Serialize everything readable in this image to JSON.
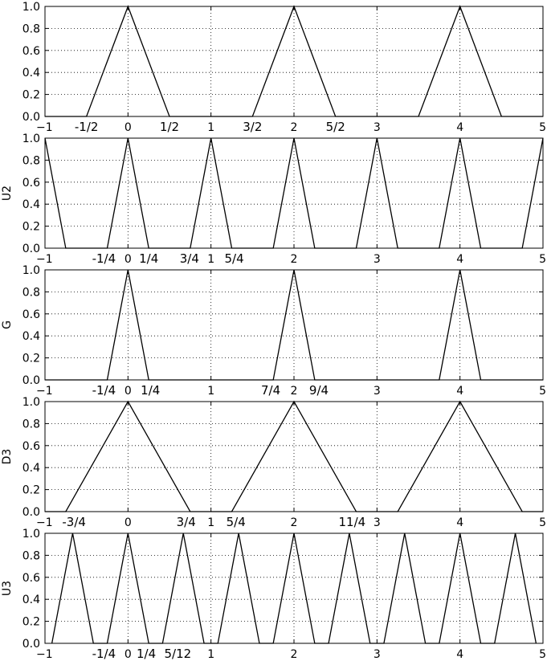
{
  "chart_data": [
    {
      "type": "line",
      "ylabel": "",
      "xlim": [
        -1,
        5
      ],
      "ylim": [
        0,
        1
      ],
      "xticks": [
        "−1",
        "0",
        "1",
        "2",
        "3",
        "4",
        "5"
      ],
      "yticks": [
        "0.0",
        "0.2",
        "0.4",
        "0.6",
        "0.8",
        "1.0"
      ],
      "grid": true,
      "annotations": [
        {
          "text": "-1/2",
          "x": -0.5
        },
        {
          "text": "1/2",
          "x": 0.5
        },
        {
          "text": "3/2",
          "x": 1.5
        },
        {
          "text": "5/2",
          "x": 2.5
        }
      ],
      "series": [
        {
          "x": [
            -1,
            -0.5,
            0,
            0.5,
            1.5,
            2,
            2.5,
            3.5,
            4,
            4.5,
            5
          ],
          "y": [
            0,
            0,
            1,
            0,
            0,
            1,
            0,
            0,
            1,
            0,
            0
          ]
        }
      ]
    },
    {
      "type": "line",
      "ylabel": "U2",
      "xlim": [
        -1,
        5
      ],
      "ylim": [
        0,
        1
      ],
      "xticks": [
        "−1",
        "0",
        "1",
        "2",
        "3",
        "4",
        "5"
      ],
      "yticks": [
        "0.0",
        "0.2",
        "0.4",
        "0.6",
        "0.8",
        "1.0"
      ],
      "grid": true,
      "annotations": [
        {
          "text": "-1/4",
          "x": -0.29
        },
        {
          "text": "1/4",
          "x": 0.25
        },
        {
          "text": "3/4",
          "x": 0.74
        },
        {
          "text": "5/4",
          "x": 1.28
        }
      ],
      "series": [
        {
          "x": [
            -1,
            -0.75,
            -0.25,
            0,
            0.25,
            0.75,
            1,
            1.25,
            1.75,
            2,
            2.25,
            2.75,
            3,
            3.25,
            3.75,
            4,
            4.25,
            4.75,
            5
          ],
          "y": [
            1,
            0,
            0,
            1,
            0,
            0,
            1,
            0,
            0,
            1,
            0,
            0,
            1,
            0,
            0,
            1,
            0,
            0,
            1
          ]
        }
      ]
    },
    {
      "type": "line",
      "ylabel": "G",
      "xlim": [
        -1,
        5
      ],
      "ylim": [
        0,
        1
      ],
      "xticks": [
        "−1",
        "0",
        "1",
        "2",
        "3",
        "4",
        "5"
      ],
      "yticks": [
        "0.0",
        "0.2",
        "0.4",
        "0.6",
        "0.8",
        "1.0"
      ],
      "grid": true,
      "annotations": [
        {
          "text": "-1/4",
          "x": -0.29
        },
        {
          "text": "1/4",
          "x": 0.27
        },
        {
          "text": "7/4",
          "x": 1.72
        },
        {
          "text": "9/4",
          "x": 2.3
        }
      ],
      "series": [
        {
          "x": [
            -1,
            -0.25,
            0,
            0.25,
            1.75,
            2,
            2.25,
            3.75,
            4,
            4.25,
            5
          ],
          "y": [
            0,
            0,
            1,
            0,
            0,
            1,
            0,
            0,
            1,
            0,
            0
          ]
        }
      ]
    },
    {
      "type": "line",
      "ylabel": "D3",
      "xlim": [
        -1,
        5
      ],
      "ylim": [
        0,
        1
      ],
      "xticks": [
        "−1",
        "0",
        "1",
        "2",
        "3",
        "4",
        "5"
      ],
      "yticks": [
        "0.0",
        "0.2",
        "0.4",
        "0.6",
        "0.8",
        "1.0"
      ],
      "grid": true,
      "annotations": [
        {
          "text": "-3/4",
          "x": -0.65
        },
        {
          "text": "3/4",
          "x": 0.7
        },
        {
          "text": "5/4",
          "x": 1.3
        },
        {
          "text": "11/4",
          "x": 2.7
        }
      ],
      "series": [
        {
          "x": [
            -1,
            -0.75,
            0,
            0.75,
            1.25,
            2,
            2.75,
            3.25,
            4,
            4.75,
            5
          ],
          "y": [
            0,
            0,
            1,
            0,
            0,
            1,
            0,
            0,
            1,
            0,
            0
          ]
        }
      ]
    },
    {
      "type": "line",
      "ylabel": "U3",
      "xlim": [
        -1,
        5
      ],
      "ylim": [
        0,
        1
      ],
      "xticks": [
        "−1",
        "0",
        "1",
        "2",
        "3",
        "4",
        "5"
      ],
      "yticks": [
        "0.0",
        "0.2",
        "0.4",
        "0.6",
        "0.8",
        "1.0"
      ],
      "grid": true,
      "annotations": [
        {
          "text": "-1/4",
          "x": -0.29
        },
        {
          "text": "1/4",
          "x": 0.22
        },
        {
          "text": "5/12",
          "x": 0.6
        }
      ],
      "series": [
        {
          "x": [
            -0.9167,
            -0.6667,
            -0.4167,
            -0.25,
            0,
            0.25,
            0.4167,
            0.6667,
            0.9167,
            1.0833,
            1.3333,
            1.5833,
            1.75,
            2,
            2.25,
            2.4167,
            2.6667,
            2.9167,
            3.0833,
            3.3333,
            3.5833,
            3.75,
            4,
            4.25,
            4.4167,
            4.6667,
            4.9167
          ],
          "y": [
            0,
            1,
            0,
            0,
            1,
            0,
            0,
            1,
            0,
            0,
            1,
            0,
            0,
            1,
            0,
            0,
            1,
            0,
            0,
            1,
            0,
            0,
            1,
            0,
            0,
            1,
            0
          ]
        }
      ]
    }
  ]
}
